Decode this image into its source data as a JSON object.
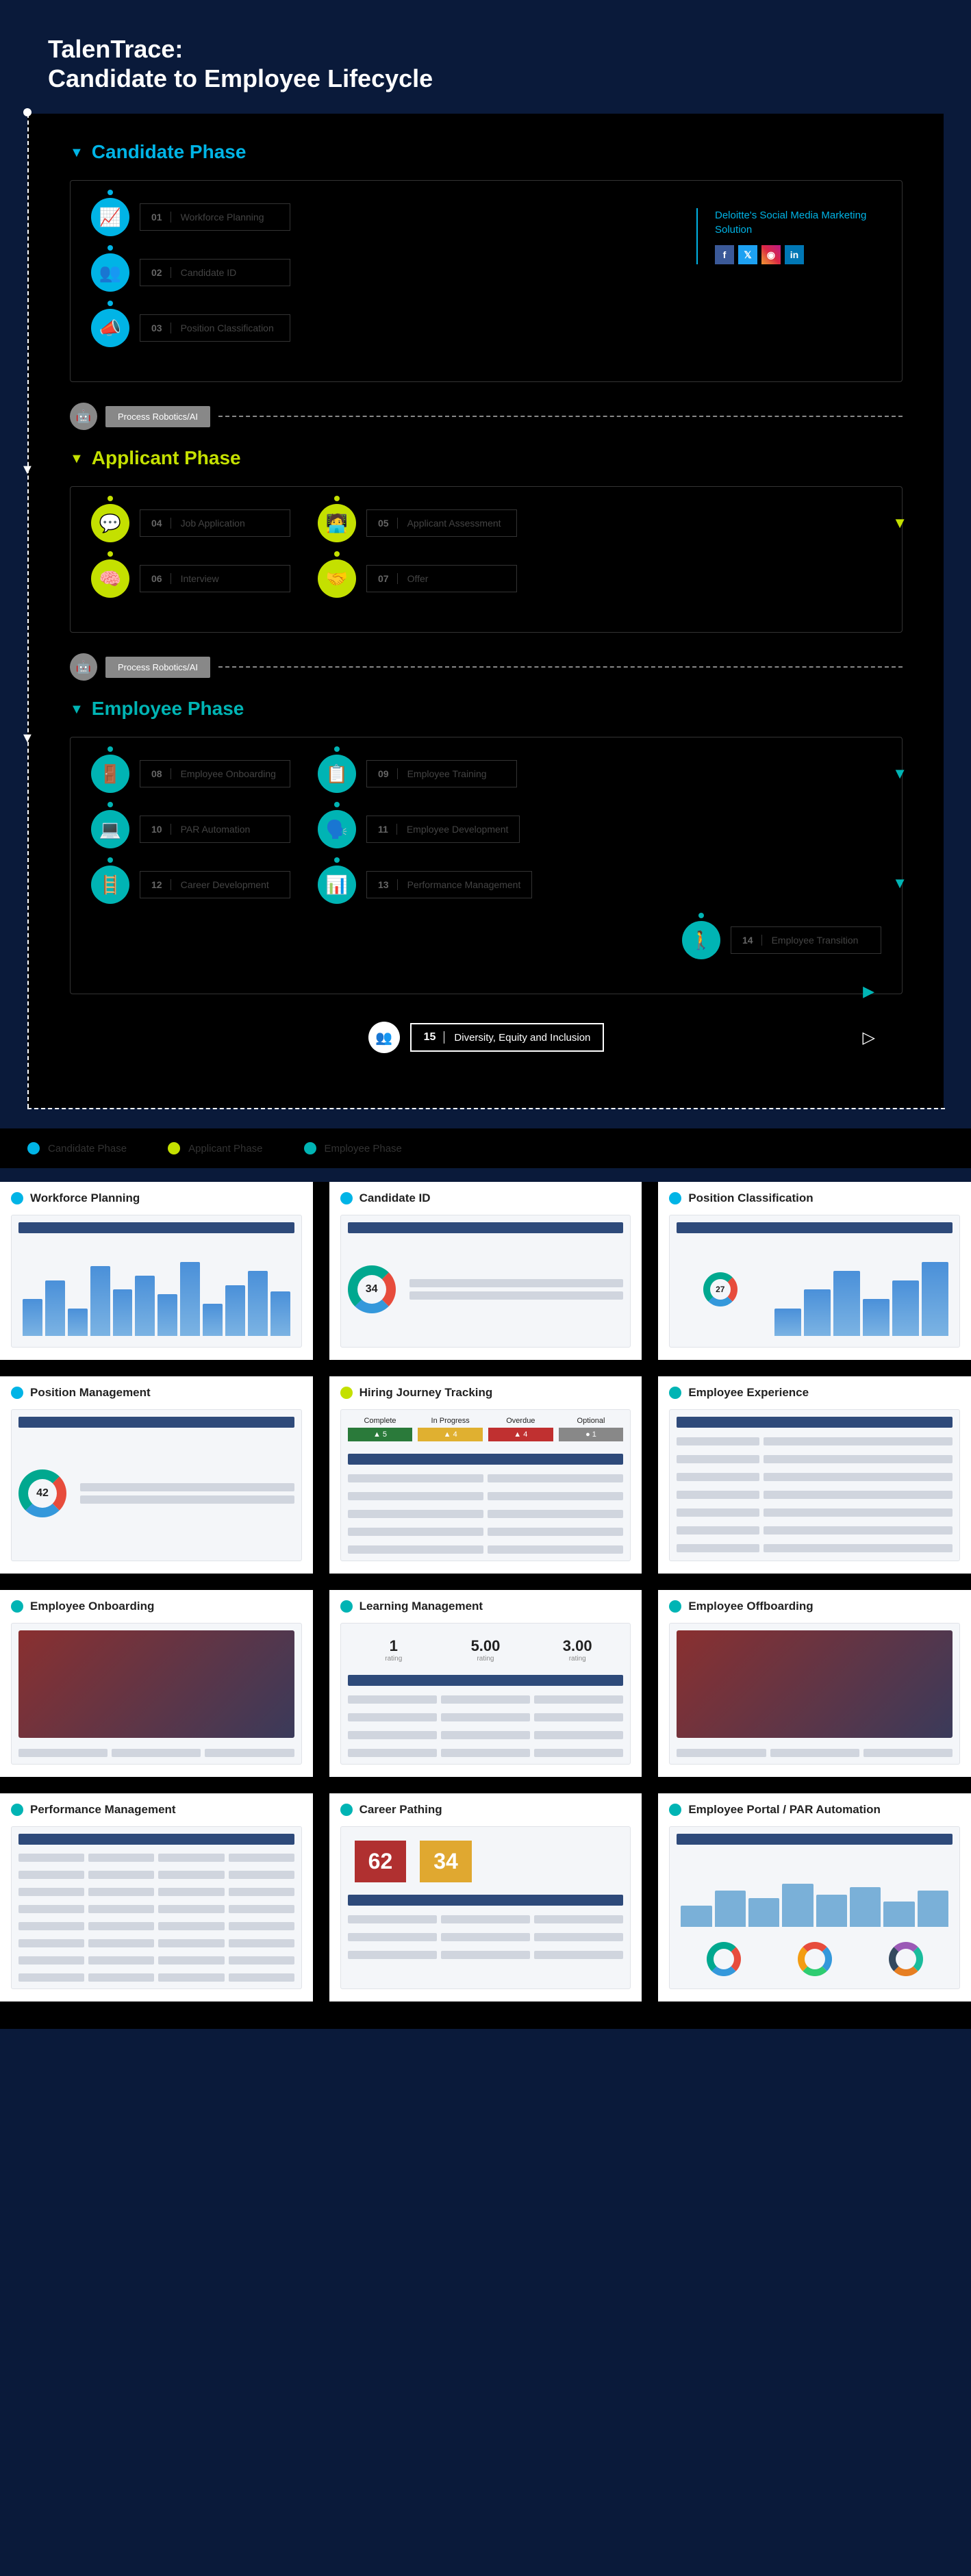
{
  "header": {
    "line1": "TalenTrace:",
    "line2": "Candidate to Employee Lifecycle"
  },
  "phases": {
    "candidate": {
      "title": "Candidate Phase",
      "color": "#00b4e6",
      "steps": [
        {
          "num": "01",
          "label": "Workforce Planning",
          "icon": "📈"
        },
        {
          "num": "02",
          "label": "Candidate ID",
          "icon": "👥"
        },
        {
          "num": "03",
          "label": "Position Classification",
          "icon": "📣"
        }
      ]
    },
    "applicant": {
      "title": "Applicant Phase",
      "color": "#c4e000",
      "steps": [
        {
          "num": "04",
          "label": "Job Application",
          "icon": "💬"
        },
        {
          "num": "05",
          "label": "Applicant Assessment",
          "icon": "🧑‍💻"
        },
        {
          "num": "06",
          "label": "Interview",
          "icon": "🧠"
        },
        {
          "num": "07",
          "label": "Offer",
          "icon": "🤝"
        }
      ]
    },
    "employee": {
      "title": "Employee Phase",
      "color": "#00b4b4",
      "steps": [
        {
          "num": "08",
          "label": "Employee Onboarding",
          "icon": "🚪"
        },
        {
          "num": "09",
          "label": "Employee Training",
          "icon": "📋"
        },
        {
          "num": "10",
          "label": "PAR Automation",
          "icon": "💻"
        },
        {
          "num": "11",
          "label": "Employee Development",
          "icon": "🗣️"
        },
        {
          "num": "12",
          "label": "Career Development",
          "icon": "🪜"
        },
        {
          "num": "13",
          "label": "Performance Management",
          "icon": "📊"
        },
        {
          "num": "14",
          "label": "Employee Transition",
          "icon": "🚶"
        }
      ]
    }
  },
  "divider": {
    "label": "Process Robotics/AI",
    "icon": "🤖"
  },
  "side_panel": {
    "title": "Deloitte's Social Media Marketing Solution",
    "socials": [
      {
        "name": "facebook",
        "glyph": "f",
        "class": "si-fb"
      },
      {
        "name": "twitter",
        "glyph": "𝕏",
        "class": "si-tw"
      },
      {
        "name": "instagram",
        "glyph": "◉",
        "class": "si-ig"
      },
      {
        "name": "linkedin",
        "glyph": "in",
        "class": "si-in"
      }
    ]
  },
  "final_step": {
    "num": "15",
    "label": "Diversity, Equity and Inclusion",
    "icon": "👥"
  },
  "legend": [
    {
      "label": "Candidate Phase",
      "color": "#00b4e6"
    },
    {
      "label": "Applicant Phase",
      "color": "#c4e000"
    },
    {
      "label": "Employee Phase",
      "color": "#00b4b4"
    }
  ],
  "cards": [
    {
      "title": "Workforce Planning",
      "color": "#00b4e6",
      "mock": "bars"
    },
    {
      "title": "Candidate ID",
      "color": "#00b4e6",
      "mock": "donut",
      "donut_value": "34"
    },
    {
      "title": "Position Classification",
      "color": "#00b4e6",
      "mock": "mixed",
      "badge_value": "27"
    },
    {
      "title": "Position Management",
      "color": "#00b4e6",
      "mock": "donut",
      "donut_value": "42"
    },
    {
      "title": "Hiring Journey Tracking",
      "color": "#c4e000",
      "mock": "tracker",
      "tracker": {
        "complete": 5,
        "inprogress": 4,
        "overdue": 4,
        "optional": 1
      }
    },
    {
      "title": "Employee Experience",
      "color": "#00b4b4",
      "mock": "form"
    },
    {
      "title": "Employee Onboarding",
      "color": "#00b4b4",
      "mock": "image"
    },
    {
      "title": "Learning Management",
      "color": "#00b4b4",
      "mock": "ratings",
      "ratings": [
        "1",
        "5.00",
        "3.00"
      ]
    },
    {
      "title": "Employee Offboarding",
      "color": "#00b4b4",
      "mock": "image"
    },
    {
      "title": "Performance Management",
      "color": "#00b4b4",
      "mock": "table"
    },
    {
      "title": "Career Pathing",
      "color": "#00b4b4",
      "mock": "bignum",
      "nums": [
        "62",
        "34"
      ]
    },
    {
      "title": "Employee Portal / PAR Automation",
      "color": "#00b4b4",
      "mock": "donuts"
    }
  ],
  "style": {
    "bg_outer": "#0a1a3a",
    "bg_inner": "#000000",
    "card_bg": "#ffffff"
  }
}
